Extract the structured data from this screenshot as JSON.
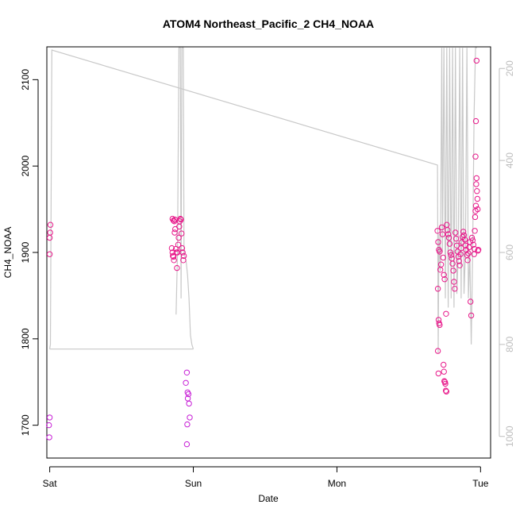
{
  "chart_data": {
    "type": "scatter",
    "title": "ATOM4 Northeast_Pacific_2 CH4_NOAA",
    "xlabel": "Date",
    "ylabel": "CH4_NOAA",
    "x_unit": "days since Sat 00:00",
    "xlim": [
      -0.02,
      3.07
    ],
    "ylim": [
      1662,
      2138
    ],
    "y2lim": [
      1047,
      153
    ],
    "x_ticks": [
      {
        "value": 0,
        "label": "Sat"
      },
      {
        "value": 1,
        "label": "Sun"
      },
      {
        "value": 2,
        "label": "Mon"
      },
      {
        "value": 3,
        "label": "Tue"
      }
    ],
    "y_ticks": [
      1700,
      1800,
      1900,
      2000,
      2100
    ],
    "y2_ticks": [
      200,
      400,
      600,
      800,
      1000
    ],
    "grid": false,
    "legend": "none",
    "colors": {
      "points": "#e8188a",
      "points_alt": "#c71fd6",
      "secondary_line": "#c8c8c8",
      "axis": "#000000",
      "secondary_axis": "#bdbdbd"
    },
    "series": [
      {
        "axis": "left",
        "style": "open-circles",
        "points": [
          [
            0.005,
            1932
          ],
          [
            0.003,
            1923
          ],
          [
            0.0,
            1917
          ],
          [
            0.0,
            1898
          ],
          [
            0.0,
            1709
          ],
          [
            -0.005,
            1700
          ],
          [
            -0.003,
            1686
          ],
          [
            0.855,
            1939
          ],
          [
            0.862,
            1937
          ],
          [
            0.868,
            1936
          ],
          [
            0.872,
            1938
          ],
          [
            0.85,
            1905
          ],
          [
            0.855,
            1900
          ],
          [
            0.858,
            1896
          ],
          [
            0.862,
            1895
          ],
          [
            0.865,
            1891
          ],
          [
            0.87,
            1923
          ],
          [
            0.874,
            1927
          ],
          [
            0.878,
            1904
          ],
          [
            0.882,
            1900
          ],
          [
            0.886,
            1882
          ],
          [
            0.89,
            1900
          ],
          [
            0.895,
            1909
          ],
          [
            0.898,
            1917
          ],
          [
            0.902,
            1930
          ],
          [
            0.906,
            1936
          ],
          [
            0.91,
            1939
          ],
          [
            0.914,
            1938
          ],
          [
            0.918,
            1922
          ],
          [
            0.922,
            1905
          ],
          [
            0.926,
            1900
          ],
          [
            0.93,
            1891
          ],
          [
            0.934,
            1896
          ],
          [
            0.955,
            1761
          ],
          [
            0.948,
            1749
          ],
          [
            0.96,
            1738
          ],
          [
            0.966,
            1736
          ],
          [
            0.962,
            1731
          ],
          [
            0.97,
            1725
          ],
          [
            0.975,
            1709
          ],
          [
            0.958,
            1701
          ],
          [
            0.955,
            1678
          ],
          [
            2.7,
            1925
          ],
          [
            2.705,
            1912
          ],
          [
            2.71,
            1903
          ],
          [
            2.715,
            1901
          ],
          [
            2.72,
            1880
          ],
          [
            2.725,
            1886
          ],
          [
            2.703,
            1858
          ],
          [
            2.708,
            1822
          ],
          [
            2.712,
            1818
          ],
          [
            2.715,
            1816
          ],
          [
            2.703,
            1786
          ],
          [
            2.707,
            1760
          ],
          [
            2.73,
            1929
          ],
          [
            2.735,
            1921
          ],
          [
            2.74,
            1894
          ],
          [
            2.745,
            1874
          ],
          [
            2.75,
            1869
          ],
          [
            2.742,
            1770
          ],
          [
            2.745,
            1762
          ],
          [
            2.748,
            1751
          ],
          [
            2.752,
            1750
          ],
          [
            2.755,
            1748
          ],
          [
            2.758,
            1740
          ],
          [
            2.762,
            1739
          ],
          [
            2.76,
            1829
          ],
          [
            2.765,
            1932
          ],
          [
            2.77,
            1926
          ],
          [
            2.775,
            1921
          ],
          [
            2.78,
            1917
          ],
          [
            2.785,
            1910
          ],
          [
            2.79,
            1900
          ],
          [
            2.795,
            1897
          ],
          [
            2.8,
            1893
          ],
          [
            2.805,
            1887
          ],
          [
            2.81,
            1879
          ],
          [
            2.815,
            1866
          ],
          [
            2.82,
            1858
          ],
          [
            2.825,
            1923
          ],
          [
            2.83,
            1916
          ],
          [
            2.835,
            1908
          ],
          [
            2.84,
            1901
          ],
          [
            2.845,
            1895
          ],
          [
            2.85,
            1890
          ],
          [
            2.855,
            1885
          ],
          [
            2.86,
            1898
          ],
          [
            2.865,
            1905
          ],
          [
            2.87,
            1912
          ],
          [
            2.875,
            1918
          ],
          [
            2.88,
            1924
          ],
          [
            2.885,
            1920
          ],
          [
            2.89,
            1915
          ],
          [
            2.895,
            1908
          ],
          [
            2.9,
            1903
          ],
          [
            2.905,
            1897
          ],
          [
            2.91,
            1891
          ],
          [
            2.915,
            1899
          ],
          [
            2.92,
            1906
          ],
          [
            2.925,
            1912
          ],
          [
            2.93,
            1843
          ],
          [
            2.935,
            1827
          ],
          [
            2.94,
            1917
          ],
          [
            2.945,
            1914
          ],
          [
            2.95,
            1909
          ],
          [
            2.955,
            1898
          ],
          [
            2.958,
            1904
          ],
          [
            2.96,
            1925
          ],
          [
            2.962,
            1941
          ],
          [
            2.965,
            1948
          ],
          [
            2.968,
            1954
          ],
          [
            2.97,
            1979
          ],
          [
            2.972,
            1986
          ],
          [
            2.975,
            1971
          ],
          [
            2.978,
            1962
          ],
          [
            2.98,
            1950
          ],
          [
            2.982,
            1902
          ],
          [
            2.985,
            1903
          ],
          [
            2.965,
            2011
          ],
          [
            2.968,
            2052
          ],
          [
            2.972,
            2122
          ]
        ]
      },
      {
        "axis": "right",
        "style": "line",
        "points": [
          [
            0.0,
            810
          ],
          [
            0.005,
            800
          ],
          [
            0.015,
            160
          ],
          [
            2.7,
            410
          ],
          [
            2.705,
            820
          ],
          [
            2.71,
            560
          ],
          [
            2.715,
            600
          ],
          [
            2.72,
            640
          ],
          [
            2.73,
            155
          ],
          [
            2.735,
            600
          ],
          [
            2.745,
            155
          ],
          [
            2.755,
            700
          ],
          [
            2.765,
            155
          ],
          [
            2.775,
            720
          ],
          [
            2.785,
            155
          ],
          [
            2.795,
            700
          ],
          [
            2.805,
            155
          ],
          [
            2.815,
            720
          ],
          [
            2.825,
            155
          ],
          [
            2.835,
            690
          ],
          [
            2.845,
            600
          ],
          [
            2.855,
            155
          ],
          [
            2.865,
            700
          ],
          [
            2.875,
            155
          ],
          [
            2.885,
            690
          ],
          [
            2.895,
            600
          ],
          [
            2.905,
            155
          ],
          [
            2.915,
            700
          ],
          [
            2.925,
            600
          ],
          [
            2.935,
            800
          ],
          [
            2.945,
            600
          ],
          [
            2.955,
            300
          ],
          [
            2.965,
            155
          ],
          [
            2.975,
            155
          ]
        ]
      },
      {
        "axis": "right",
        "style": "line",
        "points": [
          [
            0.0,
            810
          ],
          [
            1.0,
            810
          ]
        ]
      },
      {
        "axis": "right",
        "style": "line",
        "points": [
          [
            0.88,
            735
          ],
          [
            0.89,
            600
          ],
          [
            0.9,
            155
          ],
          [
            0.91,
            155
          ],
          [
            0.915,
            700
          ],
          [
            0.92,
            155
          ],
          [
            0.93,
            155
          ],
          [
            0.935,
            600
          ],
          [
            0.95,
            620
          ],
          [
            0.96,
            650
          ],
          [
            0.97,
            700
          ],
          [
            0.98,
            780
          ],
          [
            0.99,
            800
          ],
          [
            1.0,
            810
          ]
        ]
      }
    ]
  }
}
